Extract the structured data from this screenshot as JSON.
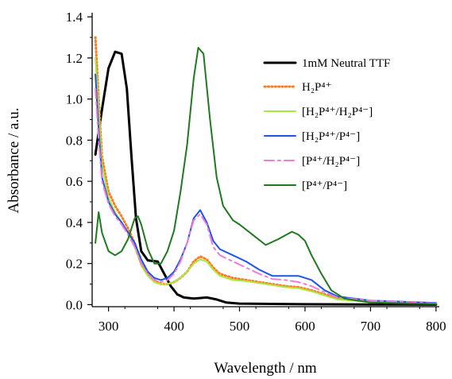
{
  "chart_data": {
    "type": "line",
    "xlabel": "Wavelength / nm",
    "ylabel": "Absorbance / a.u.",
    "xlim": [
      275,
      805
    ],
    "ylim": [
      -0.01,
      1.42
    ],
    "x_ticks": [
      300,
      400,
      500,
      600,
      700,
      800
    ],
    "y_ticks": [
      0.0,
      0.2,
      0.4,
      0.6,
      0.8,
      1.0,
      1.2,
      1.4
    ],
    "x_tick_labels": [
      "300",
      "400",
      "500",
      "600",
      "700",
      "800"
    ],
    "y_tick_labels": [
      "0.0",
      "0.2",
      "0.4",
      "0.6",
      "0.8",
      "1.0",
      "1.2",
      "1.4"
    ],
    "grid": false,
    "legend_position": "top-right",
    "series": [
      {
        "name": "1mM  Neutral TTF",
        "color": "#000000",
        "dash": "solid",
        "points": [
          [
            280,
            0.73
          ],
          [
            290,
            0.95
          ],
          [
            300,
            1.15
          ],
          [
            310,
            1.23
          ],
          [
            320,
            1.22
          ],
          [
            328,
            1.05
          ],
          [
            335,
            0.72
          ],
          [
            342,
            0.42
          ],
          [
            350,
            0.26
          ],
          [
            360,
            0.215
          ],
          [
            375,
            0.21
          ],
          [
            385,
            0.15
          ],
          [
            395,
            0.09
          ],
          [
            405,
            0.05
          ],
          [
            415,
            0.035
          ],
          [
            430,
            0.03
          ],
          [
            450,
            0.035
          ],
          [
            465,
            0.025
          ],
          [
            480,
            0.01
          ],
          [
            500,
            0.005
          ],
          [
            600,
            0.002
          ],
          [
            700,
            0.001
          ],
          [
            800,
            0.0
          ]
        ]
      },
      {
        "name": "H₂P⁴⁺",
        "color": "#ff7a20",
        "dash": "dotted",
        "points": [
          [
            280,
            1.3
          ],
          [
            285,
            1.0
          ],
          [
            290,
            0.72
          ],
          [
            300,
            0.55
          ],
          [
            310,
            0.48
          ],
          [
            320,
            0.43
          ],
          [
            330,
            0.37
          ],
          [
            340,
            0.3
          ],
          [
            350,
            0.2
          ],
          [
            360,
            0.15
          ],
          [
            370,
            0.12
          ],
          [
            380,
            0.1
          ],
          [
            390,
            0.1
          ],
          [
            400,
            0.11
          ],
          [
            410,
            0.13
          ],
          [
            420,
            0.16
          ],
          [
            430,
            0.21
          ],
          [
            440,
            0.235
          ],
          [
            450,
            0.22
          ],
          [
            460,
            0.18
          ],
          [
            470,
            0.15
          ],
          [
            490,
            0.13
          ],
          [
            510,
            0.12
          ],
          [
            530,
            0.11
          ],
          [
            550,
            0.1
          ],
          [
            570,
            0.09
          ],
          [
            590,
            0.085
          ],
          [
            610,
            0.07
          ],
          [
            630,
            0.05
          ],
          [
            650,
            0.03
          ],
          [
            700,
            0.015
          ],
          [
            800,
            0.005
          ]
        ]
      },
      {
        "name": "[H₂P⁴⁺/H₂P⁴⁻]",
        "color": "#a8e83a",
        "dash": "solid",
        "points": [
          [
            280,
            1.2
          ],
          [
            285,
            0.95
          ],
          [
            290,
            0.68
          ],
          [
            300,
            0.52
          ],
          [
            310,
            0.45
          ],
          [
            320,
            0.4
          ],
          [
            330,
            0.35
          ],
          [
            340,
            0.28
          ],
          [
            350,
            0.19
          ],
          [
            360,
            0.14
          ],
          [
            370,
            0.11
          ],
          [
            380,
            0.1
          ],
          [
            390,
            0.1
          ],
          [
            400,
            0.11
          ],
          [
            410,
            0.13
          ],
          [
            420,
            0.16
          ],
          [
            430,
            0.2
          ],
          [
            440,
            0.22
          ],
          [
            450,
            0.21
          ],
          [
            460,
            0.17
          ],
          [
            470,
            0.14
          ],
          [
            490,
            0.12
          ],
          [
            510,
            0.115
          ],
          [
            530,
            0.105
          ],
          [
            550,
            0.095
          ],
          [
            570,
            0.085
          ],
          [
            590,
            0.08
          ],
          [
            610,
            0.065
          ],
          [
            630,
            0.045
          ],
          [
            650,
            0.025
          ],
          [
            700,
            0.012
          ],
          [
            800,
            0.004
          ]
        ]
      },
      {
        "name": "[H₂P⁴⁺/P⁴⁻]",
        "color": "#1e55e8",
        "dash": "solid",
        "points": [
          [
            280,
            1.12
          ],
          [
            285,
            0.85
          ],
          [
            290,
            0.62
          ],
          [
            300,
            0.5
          ],
          [
            310,
            0.44
          ],
          [
            320,
            0.4
          ],
          [
            330,
            0.35
          ],
          [
            340,
            0.3
          ],
          [
            350,
            0.22
          ],
          [
            360,
            0.16
          ],
          [
            370,
            0.13
          ],
          [
            380,
            0.12
          ],
          [
            390,
            0.13
          ],
          [
            400,
            0.16
          ],
          [
            410,
            0.22
          ],
          [
            420,
            0.3
          ],
          [
            430,
            0.42
          ],
          [
            440,
            0.46
          ],
          [
            450,
            0.4
          ],
          [
            460,
            0.31
          ],
          [
            470,
            0.27
          ],
          [
            490,
            0.24
          ],
          [
            510,
            0.21
          ],
          [
            530,
            0.17
          ],
          [
            550,
            0.14
          ],
          [
            570,
            0.14
          ],
          [
            590,
            0.14
          ],
          [
            610,
            0.12
          ],
          [
            630,
            0.07
          ],
          [
            650,
            0.04
          ],
          [
            700,
            0.02
          ],
          [
            800,
            0.008
          ]
        ]
      },
      {
        "name": "[P⁴⁺/H₂P⁴⁻]",
        "color": "#f27ad8",
        "dash": "dashed",
        "points": [
          [
            280,
            1.05
          ],
          [
            285,
            0.8
          ],
          [
            290,
            0.6
          ],
          [
            300,
            0.49
          ],
          [
            310,
            0.43
          ],
          [
            320,
            0.39
          ],
          [
            330,
            0.34
          ],
          [
            340,
            0.28
          ],
          [
            350,
            0.2
          ],
          [
            360,
            0.15
          ],
          [
            370,
            0.12
          ],
          [
            380,
            0.11
          ],
          [
            390,
            0.12
          ],
          [
            400,
            0.15
          ],
          [
            410,
            0.21
          ],
          [
            420,
            0.3
          ],
          [
            430,
            0.41
          ],
          [
            440,
            0.44
          ],
          [
            450,
            0.39
          ],
          [
            460,
            0.28
          ],
          [
            470,
            0.24
          ],
          [
            490,
            0.21
          ],
          [
            510,
            0.18
          ],
          [
            530,
            0.15
          ],
          [
            550,
            0.125
          ],
          [
            570,
            0.12
          ],
          [
            590,
            0.11
          ],
          [
            610,
            0.09
          ],
          [
            630,
            0.06
          ],
          [
            650,
            0.035
          ],
          [
            700,
            0.02
          ],
          [
            800,
            0.006
          ]
        ]
      },
      {
        "name": "[P⁴⁺/P⁴⁻]",
        "color": "#1e7a1e",
        "dash": "solid",
        "points": [
          [
            280,
            0.3
          ],
          [
            285,
            0.45
          ],
          [
            290,
            0.35
          ],
          [
            300,
            0.26
          ],
          [
            310,
            0.24
          ],
          [
            320,
            0.26
          ],
          [
            330,
            0.32
          ],
          [
            340,
            0.42
          ],
          [
            345,
            0.43
          ],
          [
            350,
            0.39
          ],
          [
            360,
            0.27
          ],
          [
            370,
            0.2
          ],
          [
            380,
            0.2
          ],
          [
            390,
            0.26
          ],
          [
            400,
            0.36
          ],
          [
            410,
            0.55
          ],
          [
            420,
            0.78
          ],
          [
            430,
            1.1
          ],
          [
            437,
            1.25
          ],
          [
            445,
            1.22
          ],
          [
            455,
            0.9
          ],
          [
            465,
            0.62
          ],
          [
            475,
            0.48
          ],
          [
            490,
            0.41
          ],
          [
            500,
            0.39
          ],
          [
            520,
            0.34
          ],
          [
            540,
            0.29
          ],
          [
            560,
            0.32
          ],
          [
            580,
            0.355
          ],
          [
            590,
            0.34
          ],
          [
            600,
            0.31
          ],
          [
            610,
            0.24
          ],
          [
            625,
            0.15
          ],
          [
            640,
            0.07
          ],
          [
            660,
            0.03
          ],
          [
            700,
            0.01
          ],
          [
            800,
            0.003
          ]
        ]
      }
    ]
  }
}
